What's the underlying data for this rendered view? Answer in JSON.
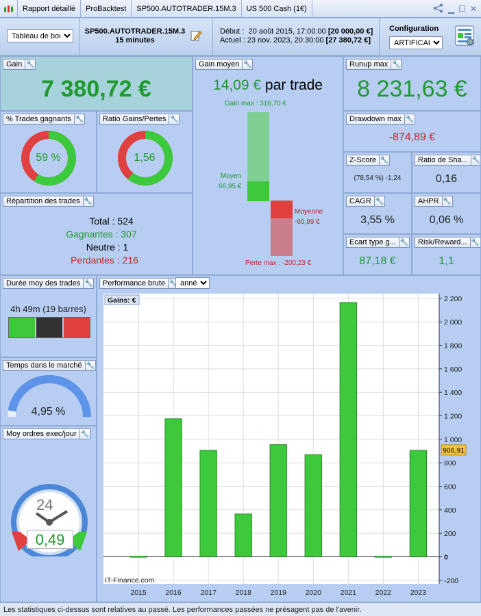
{
  "titlebar": {
    "tabs": [
      "Rapport détaillé",
      "ProBacktest",
      "SP500.AUTOTRADER.15M.3",
      "US 500 Cash (1€)"
    ]
  },
  "header": {
    "dashboard_select": "Tableau de bord",
    "strategy_name": "SP500.AUTOTRADER.15M.3",
    "timeframe": "15 minutes",
    "start_label": "Début :",
    "start_date": "20 août 2015, 17:00:00",
    "start_capital": "[20 000,00 €]",
    "current_label": "Actuel :",
    "current_date": "23 nov. 2023, 20:30:00",
    "current_capital": "[27 380,72 €]",
    "config_label": "Configuration",
    "config_select": "ARTIFICALL"
  },
  "gain": {
    "title": "Gain",
    "value": "7 380,72 €"
  },
  "gain_moyen": {
    "title": "Gain moyen",
    "value": "14,09 €",
    "suffix": "par trade",
    "gain_max_label": "Gain max : 316,70 €",
    "moyen_label": "Moyen",
    "moyen_value": "66,95 €",
    "moyenne_label": "Moyenne",
    "moyenne_value": "-60,99 €",
    "perte_max_label": "Perte max : -200,23 €"
  },
  "runup": {
    "title": "Runup max",
    "value": "8 231,63 €"
  },
  "trades_gagnants": {
    "title": "% Trades gagnants",
    "value": "59 %",
    "fraction": 0.59
  },
  "ratio": {
    "title": "Ratio Gains/Pertes",
    "value": "1,56",
    "fraction": 0.61
  },
  "drawdown": {
    "title": "Drawdown max",
    "value": "-874,89 €"
  },
  "zscore": {
    "title": "Z-Score",
    "value": "(78,54 %) -1,24"
  },
  "sharpe": {
    "title": "Ratio de Sha...",
    "value": "0,16"
  },
  "cagr": {
    "title": "CAGR",
    "value": "3,55 %"
  },
  "ahpr": {
    "title": "AHPR",
    "value": "0,06 %"
  },
  "ecart": {
    "title": "Ecart type g...",
    "value": "87,18 €"
  },
  "risk": {
    "title": "Risk/Reward...",
    "value": "1,1"
  },
  "repartition": {
    "title": "Répartition des trades",
    "total": "Total : 524",
    "gagnantes": "Gagnantes : 307",
    "neutre": "Neutre : 1",
    "perdantes": "Perdantes : 216"
  },
  "duree": {
    "title": "Durée moy des trades",
    "value": "4h 49m (19 barres)"
  },
  "temps": {
    "title": "Temps dans le marché",
    "value": "4,95 %",
    "fraction": 0.0495
  },
  "ordres": {
    "title": "Moy ordres exec/jour",
    "clock": "24",
    "value": "0,49"
  },
  "performance": {
    "title": "Performance brute",
    "period_select": "année"
  },
  "chart_data": {
    "type": "bar",
    "title": "Gains: €",
    "categories": [
      "2015",
      "2016",
      "2017",
      "2018",
      "2019",
      "2020",
      "2021",
      "2022",
      "2023"
    ],
    "values": [
      5,
      1175,
      907,
      365,
      955,
      870,
      2165,
      5,
      907
    ],
    "ylim": [
      -200,
      2200
    ],
    "yticks": [
      -200,
      0,
      200,
      400,
      600,
      800,
      1000,
      1200,
      1400,
      1600,
      1800,
      2000,
      2200
    ],
    "ytick_labels": [
      "-200",
      "0",
      "200",
      "400",
      "600",
      "800",
      "1 000",
      "1 200",
      "1 400",
      "1 600",
      "1 800",
      "2 000",
      "2 200"
    ],
    "highlight_value": "906,91",
    "highlight_y": 906.91,
    "watermark": "IT-Finance.com",
    "grid": true,
    "bar_color": "#3cc93c"
  },
  "footer": {
    "disclaimer": "Les statistiques ci-dessus sont relatives au passé. Les performances passées ne présagent pas de l'avenir."
  },
  "colors": {
    "green": "#1e9a2e",
    "red": "#c0272d",
    "bar": "#3cc93c",
    "loss": "#e04040"
  }
}
